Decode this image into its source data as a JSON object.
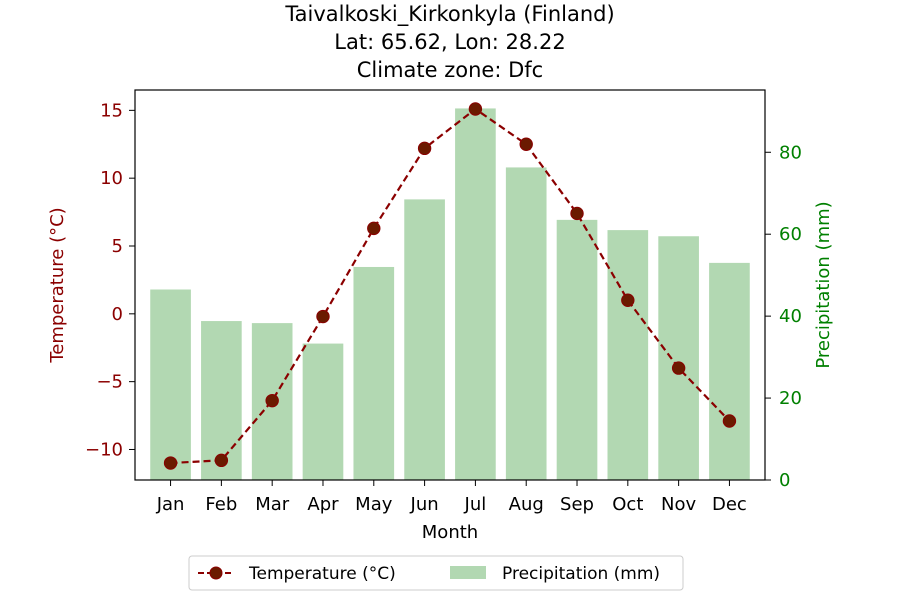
{
  "chart_data": {
    "type": "bar+line",
    "title_lines": [
      "Taivalkoski_Kirkonkyla (Finland)",
      "Lat: 65.62, Lon: 28.22",
      "Climate zone: Dfc"
    ],
    "xlabel": "Month",
    "ylabel_left": "Temperature (°C)",
    "ylabel_right": "Precipitation (mm)",
    "categories": [
      "Jan",
      "Feb",
      "Mar",
      "Apr",
      "May",
      "Jun",
      "Jul",
      "Aug",
      "Sep",
      "Oct",
      "Nov",
      "Dec"
    ],
    "temperature": {
      "name": "Temperature (°C)",
      "values": [
        -11.0,
        -10.8,
        -6.4,
        -0.2,
        6.3,
        12.2,
        15.1,
        12.5,
        7.4,
        1.0,
        -4.0,
        -7.9
      ],
      "color": "#8b0000",
      "marker_color": "#6b1a00"
    },
    "precipitation": {
      "name": "Precipitation (mm)",
      "values": [
        46.5,
        38.8,
        38.3,
        33.3,
        52.0,
        68.5,
        90.7,
        76.3,
        63.5,
        61.0,
        59.5,
        53.0
      ],
      "color": "#b2d8b2"
    },
    "ylim_left": [
      -12.25,
      16.5
    ],
    "ylim_right": [
      0,
      95.2
    ],
    "yticks_left": [
      -10,
      -5,
      0,
      5,
      10,
      15
    ],
    "yticks_left_labels": [
      "−10",
      "−5",
      "0",
      "5",
      "10",
      "15"
    ],
    "yticks_right": [
      0,
      20,
      40,
      60,
      80
    ],
    "yticks_right_labels": [
      "0",
      "20",
      "40",
      "60",
      "80"
    ],
    "left_axis_color": "#8b0000",
    "right_axis_color": "#008000",
    "legend_placement": "bottom-center",
    "grid": false
  }
}
